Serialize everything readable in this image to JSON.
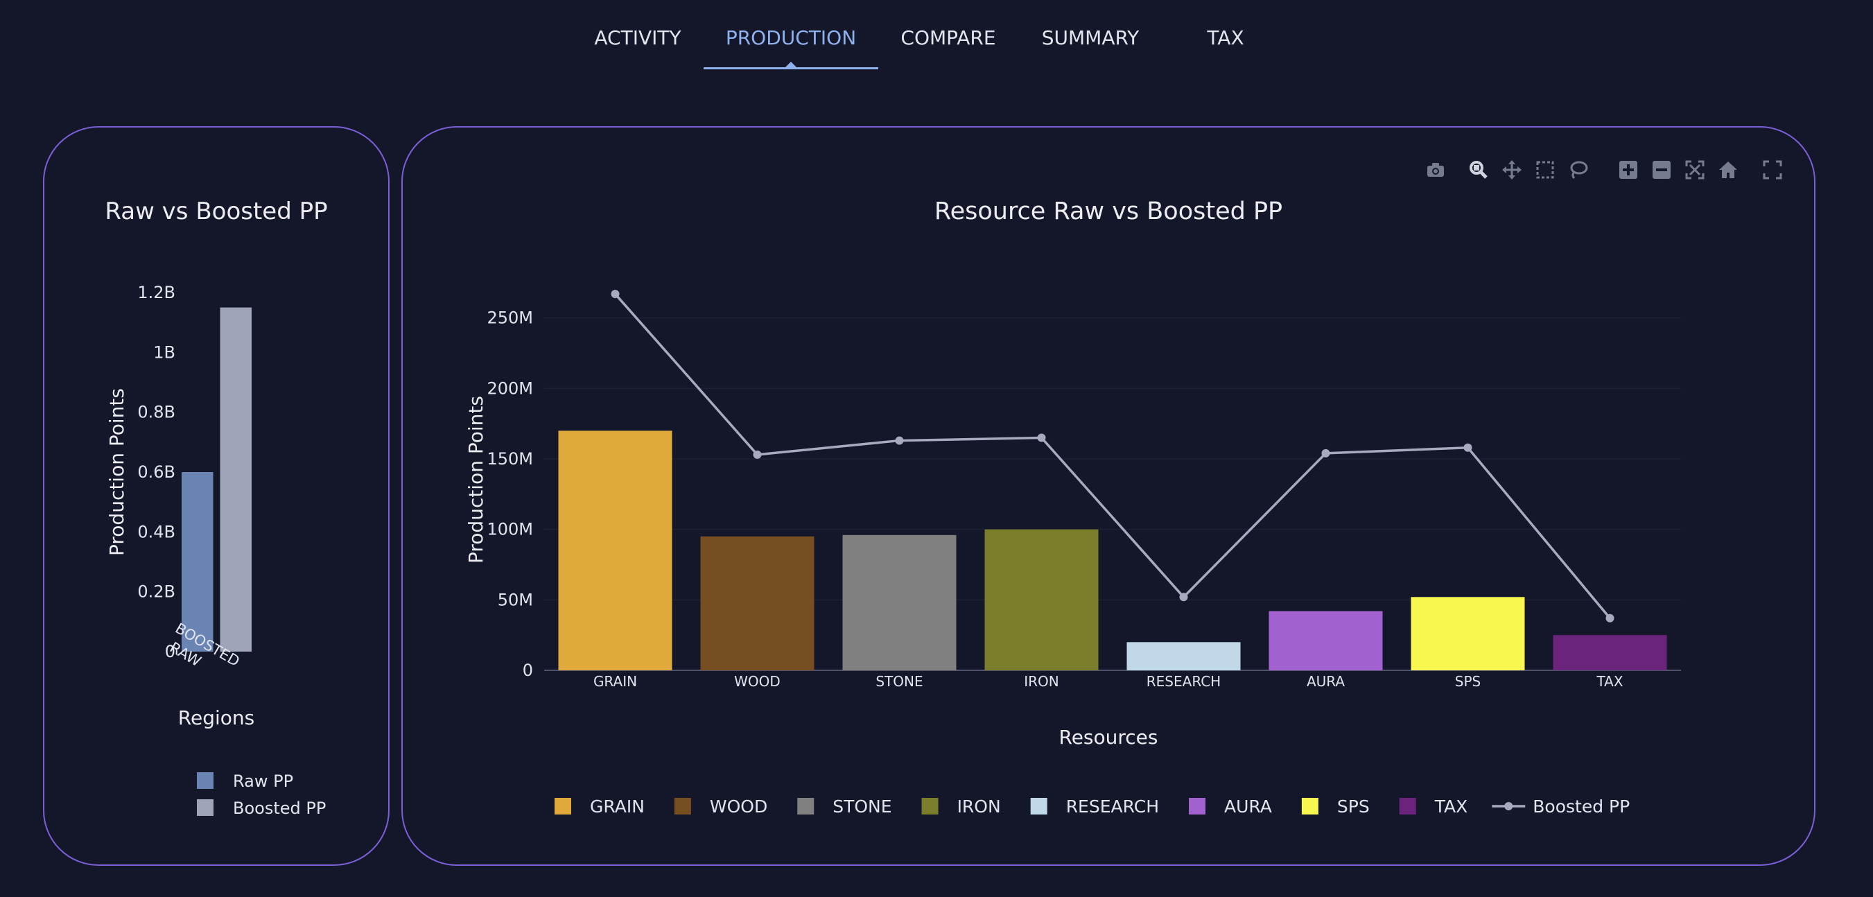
{
  "tabs": [
    {
      "label": "ACTIVITY",
      "active": false
    },
    {
      "label": "PRODUCTION",
      "active": true
    },
    {
      "label": "COMPARE",
      "active": false
    },
    {
      "label": "SUMMARY",
      "active": false
    },
    {
      "label": "TAX",
      "active": false
    }
  ],
  "colors": {
    "background": "#14172a",
    "card_border": "#7b5fd6",
    "active_tab": "#8fb2ee",
    "line": "#a8abbf"
  },
  "modebar": [
    "camera-icon",
    "zoom-icon",
    "pan-icon",
    "box-select-icon",
    "lasso-select-icon",
    "zoom-in-icon",
    "zoom-out-icon",
    "autoscale-icon",
    "reset-axes-icon",
    "fullscreen-icon"
  ],
  "chart_data": [
    {
      "type": "bar",
      "title": "Raw vs Boosted PP",
      "xlabel": "Regions",
      "ylabel": "Production Points",
      "categories": [
        "RAW",
        "BOOSTED"
      ],
      "ylim": [
        0,
        1200000000.0
      ],
      "yticks": [
        0,
        200000000.0,
        400000000.0,
        600000000.0,
        800000000.0,
        1000000000.0,
        1200000000.0
      ],
      "ytick_labels": [
        "0",
        "0.2B",
        "0.4B",
        "0.6B",
        "0.8B",
        "1B",
        "1.2B"
      ],
      "series": [
        {
          "name": "Raw PP",
          "color": "#6a84b4",
          "values": [
            600000000,
            null
          ]
        },
        {
          "name": "Boosted PP",
          "color": "#a0a4b8",
          "values": [
            null,
            1150000000
          ]
        }
      ],
      "legend": "bottom"
    },
    {
      "type": "bar",
      "title": "Resource Raw vs Boosted PP",
      "xlabel": "Resources",
      "ylabel": "Production Points",
      "categories": [
        "GRAIN",
        "WOOD",
        "STONE",
        "IRON",
        "RESEARCH",
        "AURA",
        "SPS",
        "TAX"
      ],
      "values": [
        170000000,
        95000000,
        96000000,
        100000000,
        20000000,
        42000000,
        52000000,
        25000000
      ],
      "colors": [
        "#dfa93c",
        "#774d22",
        "#808080",
        "#7a7e2a",
        "#c0d8e8",
        "#a262d0",
        "#f8f850",
        "#6a247c"
      ],
      "line_series": {
        "name": "Boosted PP",
        "values": [
          267000000,
          153000000,
          163000000,
          165000000,
          52000000,
          154000000,
          158000000,
          37000000
        ]
      },
      "ylim": [
        0,
        270000000
      ],
      "yticks": [
        0,
        50000000,
        100000000,
        150000000,
        200000000,
        250000000
      ],
      "ytick_labels": [
        "0",
        "50M",
        "100M",
        "150M",
        "200M",
        "250M"
      ],
      "legend": "bottom",
      "grid": true
    }
  ]
}
